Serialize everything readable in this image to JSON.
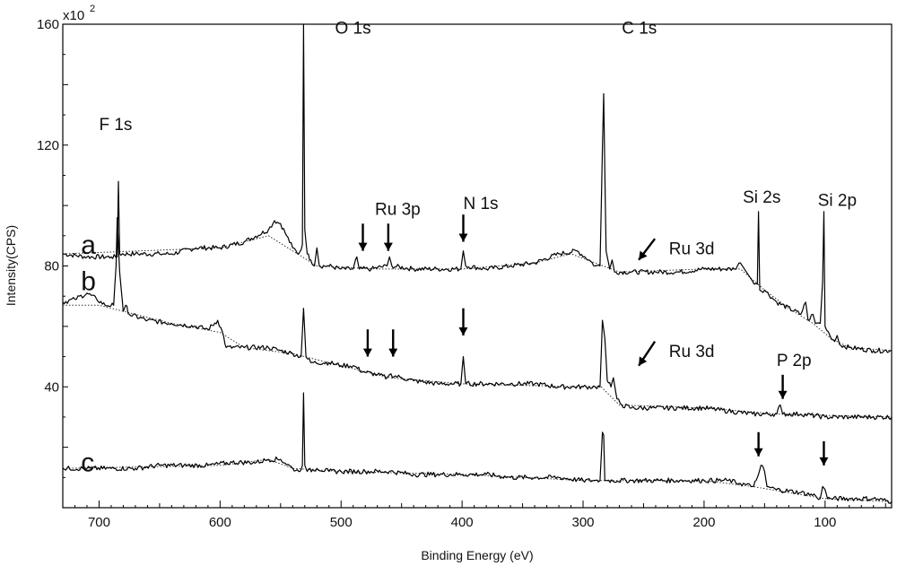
{
  "chart_data": {
    "type": "line",
    "title": "",
    "xlabel": "Binding Energy (eV)",
    "ylabel": "Intensity(CPS)",
    "y_multiplier_label": "x10",
    "y_multiplier_exponent": "2",
    "xlim": [
      730,
      45
    ],
    "x_reversed": true,
    "ylim": [
      0,
      160
    ],
    "x_ticks": [
      700,
      600,
      500,
      400,
      300,
      200,
      100
    ],
    "y_ticks": [
      160,
      120,
      80,
      40
    ],
    "grid": false,
    "legend": "none",
    "series": [
      {
        "name": "a",
        "line_color": "#000000",
        "points": [
          [
            730,
            84
          ],
          [
            710,
            83
          ],
          [
            690,
            83
          ],
          [
            685,
            83
          ],
          [
            684,
            108
          ],
          [
            683,
            84
          ],
          [
            670,
            84
          ],
          [
            650,
            84
          ],
          [
            640,
            84
          ],
          [
            620,
            86
          ],
          [
            600,
            86
          ],
          [
            580,
            88
          ],
          [
            560,
            92
          ],
          [
            555,
            95
          ],
          [
            550,
            94
          ],
          [
            545,
            90
          ],
          [
            540,
            86
          ],
          [
            535,
            84
          ],
          [
            532,
            87
          ],
          [
            531,
            160
          ],
          [
            530,
            92
          ],
          [
            528,
            84
          ],
          [
            525,
            82
          ],
          [
            522,
            80
          ],
          [
            520,
            86
          ],
          [
            518,
            80
          ],
          [
            510,
            80
          ],
          [
            500,
            79
          ],
          [
            490,
            79
          ],
          [
            487,
            83
          ],
          [
            485,
            79
          ],
          [
            475,
            79
          ],
          [
            462,
            80
          ],
          [
            460,
            83
          ],
          [
            458,
            80
          ],
          [
            440,
            79
          ],
          [
            420,
            79
          ],
          [
            401,
            79
          ],
          [
            399,
            85
          ],
          [
            397,
            80
          ],
          [
            380,
            79
          ],
          [
            360,
            80
          ],
          [
            340,
            81
          ],
          [
            320,
            84
          ],
          [
            305,
            85
          ],
          [
            295,
            82
          ],
          [
            290,
            80
          ],
          [
            286,
            80
          ],
          [
            284,
            119
          ],
          [
            283,
            137
          ],
          [
            281,
            85
          ],
          [
            278,
            79
          ],
          [
            276,
            82
          ],
          [
            274,
            78
          ],
          [
            260,
            78
          ],
          [
            240,
            78
          ],
          [
            220,
            78
          ],
          [
            200,
            79
          ],
          [
            185,
            79
          ],
          [
            175,
            79
          ],
          [
            170,
            81
          ],
          [
            160,
            75
          ],
          [
            156,
            74
          ],
          [
            155,
            98
          ],
          [
            154,
            72
          ],
          [
            150,
            72
          ],
          [
            140,
            68
          ],
          [
            120,
            64
          ],
          [
            116,
            68
          ],
          [
            114,
            62
          ],
          [
            110,
            64
          ],
          [
            108,
            61
          ],
          [
            104,
            61
          ],
          [
            102,
            75
          ],
          [
            101,
            98
          ],
          [
            100,
            60
          ],
          [
            96,
            57
          ],
          [
            92,
            55
          ],
          [
            90,
            57
          ],
          [
            88,
            54
          ],
          [
            80,
            53
          ],
          [
            60,
            52
          ],
          [
            45,
            52
          ]
        ]
      },
      {
        "name": "b",
        "line_color": "#000000",
        "points": [
          [
            730,
            68
          ],
          [
            720,
            69
          ],
          [
            710,
            71
          ],
          [
            702,
            69
          ],
          [
            695,
            67
          ],
          [
            688,
            67
          ],
          [
            686,
            80
          ],
          [
            685,
            96
          ],
          [
            683,
            78
          ],
          [
            680,
            65
          ],
          [
            678,
            67
          ],
          [
            675,
            64
          ],
          [
            660,
            62
          ],
          [
            640,
            61
          ],
          [
            620,
            60
          ],
          [
            610,
            59
          ],
          [
            602,
            62
          ],
          [
            598,
            58
          ],
          [
            595,
            53
          ],
          [
            580,
            53
          ],
          [
            560,
            53
          ],
          [
            550,
            52
          ],
          [
            540,
            51
          ],
          [
            533,
            50
          ],
          [
            531,
            66
          ],
          [
            529,
            50
          ],
          [
            525,
            48
          ],
          [
            510,
            48
          ],
          [
            500,
            47
          ],
          [
            490,
            47
          ],
          [
            482,
            45
          ],
          [
            470,
            44
          ],
          [
            462,
            43
          ],
          [
            460,
            44
          ],
          [
            450,
            43
          ],
          [
            440,
            42
          ],
          [
            420,
            41
          ],
          [
            410,
            41
          ],
          [
            401,
            41
          ],
          [
            399,
            50
          ],
          [
            397,
            41
          ],
          [
            380,
            41
          ],
          [
            360,
            41
          ],
          [
            340,
            41
          ],
          [
            320,
            40
          ],
          [
            300,
            40
          ],
          [
            290,
            40
          ],
          [
            286,
            40
          ],
          [
            284,
            62
          ],
          [
            282,
            56
          ],
          [
            280,
            42
          ],
          [
            277,
            40
          ],
          [
            275,
            43
          ],
          [
            272,
            36
          ],
          [
            268,
            34
          ],
          [
            260,
            33
          ],
          [
            240,
            33
          ],
          [
            220,
            33
          ],
          [
            200,
            33
          ],
          [
            180,
            32
          ],
          [
            160,
            31
          ],
          [
            140,
            31
          ],
          [
            137,
            34
          ],
          [
            135,
            31
          ],
          [
            120,
            31
          ],
          [
            100,
            30
          ],
          [
            80,
            30
          ],
          [
            60,
            30
          ],
          [
            45,
            30
          ]
        ]
      },
      {
        "name": "c",
        "line_color": "#000000",
        "points": [
          [
            730,
            13
          ],
          [
            710,
            13
          ],
          [
            690,
            13
          ],
          [
            670,
            13
          ],
          [
            650,
            14
          ],
          [
            630,
            14
          ],
          [
            610,
            14
          ],
          [
            590,
            15
          ],
          [
            570,
            15
          ],
          [
            560,
            16
          ],
          [
            550,
            16
          ],
          [
            540,
            13
          ],
          [
            535,
            12
          ],
          [
            532,
            14
          ],
          [
            531,
            38
          ],
          [
            530,
            14
          ],
          [
            528,
            12
          ],
          [
            520,
            13
          ],
          [
            510,
            12
          ],
          [
            500,
            12
          ],
          [
            480,
            12
          ],
          [
            460,
            12
          ],
          [
            440,
            11
          ],
          [
            420,
            11
          ],
          [
            400,
            11
          ],
          [
            380,
            11
          ],
          [
            360,
            10
          ],
          [
            340,
            10
          ],
          [
            320,
            10
          ],
          [
            300,
            9
          ],
          [
            290,
            9
          ],
          [
            286,
            9
          ],
          [
            284,
            25
          ],
          [
            283,
            24
          ],
          [
            282,
            9
          ],
          [
            280,
            9
          ],
          [
            260,
            9
          ],
          [
            240,
            9
          ],
          [
            220,
            9
          ],
          [
            200,
            9
          ],
          [
            180,
            9
          ],
          [
            170,
            8
          ],
          [
            160,
            7
          ],
          [
            157,
            9
          ],
          [
            155,
            11
          ],
          [
            153,
            14
          ],
          [
            150,
            12
          ],
          [
            148,
            7
          ],
          [
            140,
            6
          ],
          [
            120,
            5
          ],
          [
            108,
            4
          ],
          [
            104,
            3
          ],
          [
            102,
            7
          ],
          [
            100,
            6
          ],
          [
            98,
            3
          ],
          [
            95,
            3
          ],
          [
            80,
            3
          ],
          [
            60,
            3
          ],
          [
            45,
            2
          ]
        ]
      }
    ],
    "background_series": [
      {
        "for": "a",
        "points": [
          [
            730,
            84
          ],
          [
            600,
            86
          ],
          [
            560,
            90
          ],
          [
            540,
            85
          ],
          [
            520,
            80
          ],
          [
            470,
            79
          ],
          [
            400,
            79
          ],
          [
            340,
            81
          ],
          [
            310,
            84
          ],
          [
            290,
            81
          ],
          [
            270,
            78
          ],
          [
            200,
            79
          ],
          [
            170,
            79
          ],
          [
            150,
            72
          ],
          [
            130,
            66
          ],
          [
            110,
            61
          ],
          [
            95,
            56
          ],
          [
            80,
            53
          ],
          [
            45,
            52
          ]
        ]
      },
      {
        "for": "b",
        "points": [
          [
            730,
            67
          ],
          [
            700,
            67
          ],
          [
            640,
            61
          ],
          [
            600,
            58
          ],
          [
            580,
            53
          ],
          [
            540,
            51
          ],
          [
            500,
            47
          ],
          [
            460,
            43
          ],
          [
            400,
            41
          ],
          [
            300,
            40
          ],
          [
            285,
            40
          ],
          [
            270,
            34
          ],
          [
            200,
            33
          ],
          [
            140,
            31
          ],
          [
            45,
            30
          ]
        ]
      },
      {
        "for": "c",
        "points": [
          [
            730,
            13
          ],
          [
            600,
            14
          ],
          [
            560,
            16
          ],
          [
            540,
            13
          ],
          [
            500,
            12
          ],
          [
            400,
            11
          ],
          [
            300,
            9
          ],
          [
            200,
            9
          ],
          [
            160,
            7
          ],
          [
            100,
            3
          ],
          [
            45,
            2
          ]
        ]
      }
    ],
    "annotations": [
      {
        "text": "O 1s",
        "x": 505,
        "y": 159
      },
      {
        "text": "C 1s",
        "x": 268,
        "y": 159
      },
      {
        "text": "F 1s",
        "x": 700,
        "y": 127
      },
      {
        "text": "Ru 3p",
        "x": 472,
        "y": 99
      },
      {
        "text": "N 1s",
        "x": 399,
        "y": 101
      },
      {
        "text": "Si 2s",
        "x": 168,
        "y": 103
      },
      {
        "text": "Si 2p",
        "x": 106,
        "y": 102
      },
      {
        "text": "Ru 3d",
        "x": 229,
        "y": 86
      },
      {
        "text": "Ru 3d",
        "x": 229,
        "y": 52
      },
      {
        "text": "P 2p",
        "x": 140,
        "y": 49
      }
    ],
    "trace_labels": [
      {
        "text": "a",
        "x": 715,
        "y": 87
      },
      {
        "text": "b",
        "x": 715,
        "y": 75
      },
      {
        "text": "c",
        "x": 715,
        "y": 15
      }
    ],
    "arrows": [
      {
        "x": 482,
        "y_from": 94,
        "y_to": 85,
        "dx": 0
      },
      {
        "x": 461,
        "y_from": 94,
        "y_to": 85,
        "dx": 0
      },
      {
        "x": 399,
        "y_from": 97,
        "y_to": 88,
        "dx": 0
      },
      {
        "x": 254,
        "y_from": 89,
        "y_to": 82,
        "dx": 18
      },
      {
        "x": 478,
        "y_from": 59,
        "y_to": 50,
        "dx": 0
      },
      {
        "x": 457,
        "y_from": 59,
        "y_to": 50,
        "dx": 0
      },
      {
        "x": 399,
        "y_from": 66,
        "y_to": 57,
        "dx": 0
      },
      {
        "x": 254,
        "y_from": 55,
        "y_to": 47,
        "dx": 18
      },
      {
        "x": 135,
        "y_from": 44,
        "y_to": 36,
        "dx": 0
      },
      {
        "x": 155,
        "y_from": 25,
        "y_to": 17,
        "dx": 0
      },
      {
        "x": 101,
        "y_from": 22,
        "y_to": 14,
        "dx": 0
      }
    ]
  }
}
